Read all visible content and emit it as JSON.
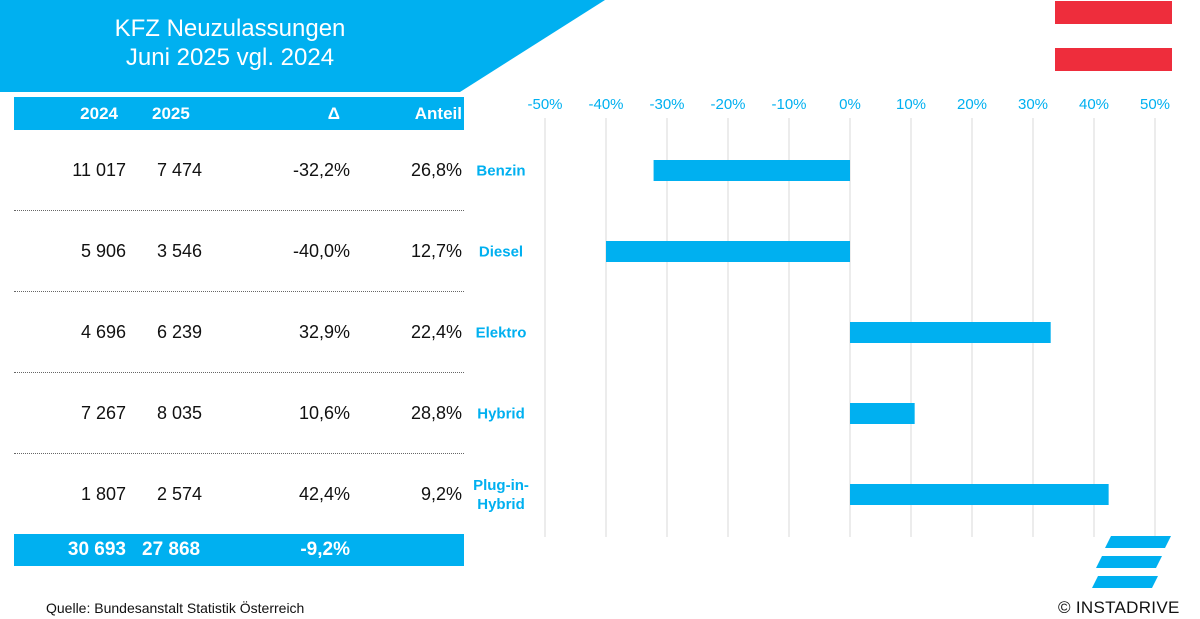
{
  "header": {
    "title_line1": "KFZ Neuzulassungen",
    "title_line2": "Juni 2025 vgl. 2024"
  },
  "colors": {
    "accent": "#00B0F0",
    "flag_red": "#EE2D3C",
    "grid": "#D9D9D9"
  },
  "table": {
    "columns": [
      "2024",
      "2025",
      "Δ",
      "Anteil"
    ],
    "rows": [
      {
        "y2024": "11 017",
        "y2025": "7 474",
        "delta": "-32,2%",
        "share": "26,8%"
      },
      {
        "y2024": "5 906",
        "y2025": "3 546",
        "delta": "-40,0%",
        "share": "12,7%"
      },
      {
        "y2024": "4 696",
        "y2025": "6 239",
        "delta": "32,9%",
        "share": "22,4%"
      },
      {
        "y2024": "7 267",
        "y2025": "8 035",
        "delta": "10,6%",
        "share": "28,8%"
      },
      {
        "y2024": "1 807",
        "y2025": "2 574",
        "delta": "42,4%",
        "share": "9,2%"
      }
    ],
    "total": {
      "y2024": "30 693",
      "y2025": "27 868",
      "delta": "-9,2%"
    }
  },
  "chart_data": {
    "type": "bar",
    "orientation": "horizontal",
    "categories": [
      "Benzin",
      "Diesel",
      "Elektro",
      "Hybrid",
      "Plug-in-\nHybrid"
    ],
    "values": [
      -32.2,
      -40.0,
      32.9,
      10.6,
      42.4
    ],
    "xlim": [
      -50,
      50
    ],
    "xticks": [
      -50,
      -40,
      -30,
      -20,
      -10,
      0,
      10,
      20,
      30,
      40,
      50
    ],
    "tick_labels": [
      "-50%",
      "-40%",
      "-30%",
      "-20%",
      "-10%",
      "0%",
      "10%",
      "20%",
      "30%",
      "40%",
      "50%"
    ],
    "grid": true,
    "title": "",
    "xlabel": "",
    "ylabel": ""
  },
  "footer": {
    "source": "Quelle: Bundesanstalt Statistik Österreich",
    "copyright": "© INSTADRIVE"
  },
  "logo": {
    "icon": "instadrive-logo-icon"
  }
}
